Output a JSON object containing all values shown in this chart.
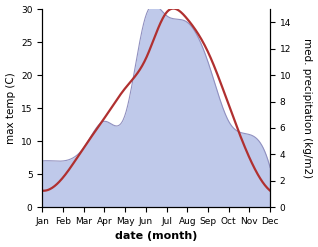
{
  "months": [
    "Jan",
    "Feb",
    "Mar",
    "Apr",
    "May",
    "Jun",
    "Jul",
    "Aug",
    "Sep",
    "Oct",
    "Nov",
    "Dec"
  ],
  "temp": [
    2.5,
    4.5,
    9.0,
    13.5,
    18.0,
    22.5,
    29.5,
    28.5,
    23.5,
    15.5,
    7.5,
    2.5
  ],
  "precip": [
    3.5,
    3.5,
    4.5,
    6.5,
    7.0,
    14.5,
    14.5,
    14.0,
    11.0,
    6.5,
    5.5,
    3.0
  ],
  "temp_color": "#b03030",
  "precip_fill_color": "#b8c4e8",
  "precip_edge_color": "#9090c0",
  "temp_ylim": [
    0,
    30
  ],
  "precip_ylim": [
    0,
    15
  ],
  "precip_scale": 2.0,
  "xlabel": "date (month)",
  "ylabel_left": "max temp (C)",
  "ylabel_right": "med. precipitation (kg/m2)",
  "background_color": "#ffffff",
  "label_fontsize": 7.5,
  "tick_fontsize": 6.5,
  "xlabel_fontsize": 8,
  "linewidth_temp": 1.6,
  "linewidth_precip": 0.8
}
